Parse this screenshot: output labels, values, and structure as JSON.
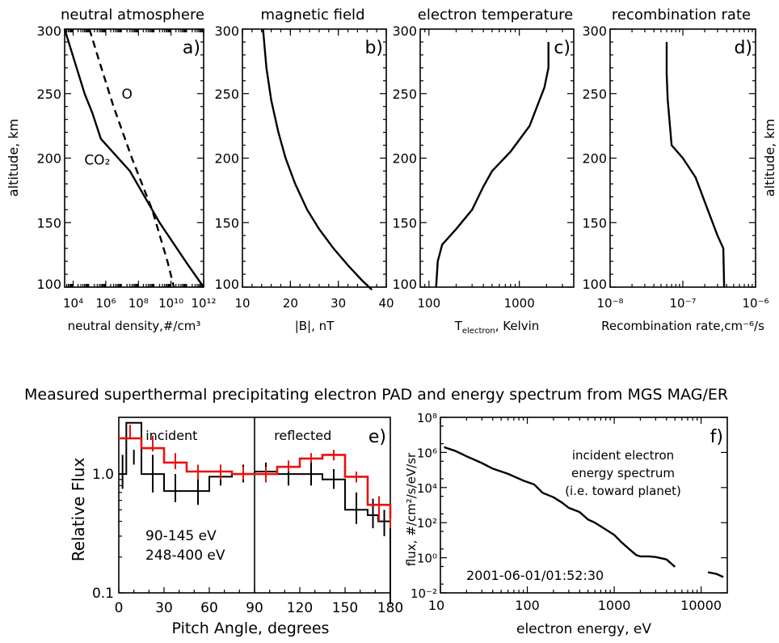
{
  "chart_data": [
    {
      "id": "a",
      "type": "line",
      "title": "neutral atmosphere",
      "panel_label": "a)",
      "xlabel": "neutral density,#/cm³",
      "ylabel": "altitude, km",
      "xscale": "log",
      "xlim": [
        3000,
        1000000000000.0
      ],
      "ylim": [
        100,
        300
      ],
      "xticks": [
        {
          "v": 10000.0,
          "label": "10⁴"
        },
        {
          "v": 1000000.0,
          "label": "10⁶"
        },
        {
          "v": 100000000.0,
          "label": "10⁸"
        },
        {
          "v": 10000000000.0,
          "label": "10¹⁰"
        },
        {
          "v": 1000000000000.0,
          "label": "10¹²"
        }
      ],
      "yticks": [
        100,
        150,
        200,
        250,
        300
      ],
      "series": [
        {
          "name": "CO₂",
          "style": "solid",
          "x": [
            3000,
            50000,
            150000,
            500000,
            30000000,
            2000000000.0,
            100000000000.0,
            1000000000000.0
          ],
          "y": [
            300,
            250,
            235,
            215,
            190,
            150,
            118,
            100
          ]
        },
        {
          "name": "O",
          "style": "dashed",
          "x": [
            100000,
            400000,
            3000000,
            40000000,
            700000000,
            6000000000,
            15000000000.0
          ],
          "y": [
            300,
            275,
            240,
            200,
            160,
            120,
            100
          ]
        }
      ],
      "annotations": [
        {
          "text": "O",
          "x": 20000000.0,
          "y": 246
        },
        {
          "text": "CO₂",
          "x": 300000.0,
          "y": 195
        }
      ]
    },
    {
      "id": "b",
      "type": "line",
      "title": "magnetic field",
      "panel_label": "b)",
      "xlabel": "|B|, nT",
      "xscale": "linear",
      "xlim": [
        10,
        40
      ],
      "ylim": [
        100,
        300
      ],
      "xticks": [
        {
          "v": 10,
          "label": "10"
        },
        {
          "v": 20,
          "label": "20"
        },
        {
          "v": 30,
          "label": "30"
        },
        {
          "v": 40,
          "label": "40"
        }
      ],
      "yticks": [
        100,
        150,
        200,
        250,
        300
      ],
      "series": [
        {
          "name": "",
          "style": "solid",
          "x": [
            14.3,
            15,
            16,
            17.5,
            19,
            21,
            23.5,
            26,
            29,
            32,
            35,
            37
          ],
          "y": [
            300,
            270,
            245,
            220,
            200,
            180,
            160,
            145,
            130,
            117,
            105,
            98
          ]
        }
      ]
    },
    {
      "id": "c",
      "type": "line",
      "title": "electron temperature",
      "panel_label": "c)",
      "xlabel": "T",
      "xlabel_sub": "electron",
      "xlabel_rest": ", Kelvin",
      "xscale": "log",
      "xlim": [
        80,
        4000
      ],
      "ylim": [
        100,
        300
      ],
      "xticks": [
        {
          "v": 100,
          "label": "100"
        },
        {
          "v": 1000,
          "label": "1000"
        }
      ],
      "yticks": [
        100,
        150,
        200,
        250,
        300
      ],
      "series": [
        {
          "name": "",
          "style": "solid",
          "x": [
            120,
            125,
            140,
            200,
            300,
            400,
            500,
            800,
            1300,
            1900,
            2100,
            2100
          ],
          "y": [
            100,
            120,
            133,
            145,
            160,
            178,
            190,
            205,
            225,
            255,
            270,
            290
          ]
        }
      ]
    },
    {
      "id": "d",
      "type": "line",
      "title": "recombination rate",
      "panel_label": "d)",
      "xlabel": "Recombination rate,cm⁻⁶/s",
      "ylabel": "altitude, km",
      "xscale": "log",
      "xlim": [
        1e-08,
        1e-06
      ],
      "ylim": [
        100,
        300
      ],
      "xticks": [
        {
          "v": 1e-08,
          "label": "10⁻⁸"
        },
        {
          "v": 1e-07,
          "label": "10⁻⁷"
        },
        {
          "v": 1e-06,
          "label": "10⁻⁶"
        }
      ],
      "yticks": [
        100,
        150,
        200,
        250,
        300
      ],
      "series": [
        {
          "name": "",
          "style": "solid",
          "x": [
            6e-08,
            6e-08,
            6.2e-08,
            7e-08,
            1e-07,
            1.5e-07,
            2.2e-07,
            3e-07,
            3.6e-07,
            3.7e-07
          ],
          "y": [
            290,
            265,
            245,
            210,
            200,
            185,
            160,
            140,
            130,
            100
          ]
        }
      ]
    },
    {
      "id": "e",
      "type": "line",
      "heading": "Measured superthermal precipitating electron PAD and energy spectrum from MGS MAG/ER",
      "panel_label": "e)",
      "xlabel": "Pitch Angle, degrees",
      "ylabel": "Relative Flux",
      "xscale": "linear",
      "yscale": "log",
      "xlim": [
        0,
        180
      ],
      "ylim": [
        0.1,
        3
      ],
      "xticks": [
        {
          "v": 0,
          "label": "0"
        },
        {
          "v": 30,
          "label": "30"
        },
        {
          "v": 60,
          "label": "60"
        },
        {
          "v": 90,
          "label": "90"
        },
        {
          "v": 120,
          "label": "120"
        },
        {
          "v": 150,
          "label": "150"
        },
        {
          "v": 180,
          "label": "180"
        }
      ],
      "yticks": [
        {
          "v": 0.1,
          "label": "0.1"
        },
        {
          "v": 1.0,
          "label": "1.0"
        }
      ],
      "divider_x": 90,
      "region_labels": [
        {
          "text": "incident",
          "x": 35
        },
        {
          "text": "reflected",
          "x": 122
        }
      ],
      "series": [
        {
          "name": "90-145 eV",
          "color": "#e8120c",
          "edges": [
            0,
            15,
            30,
            45,
            60,
            75,
            90,
            105,
            120,
            135,
            150,
            165,
            180
          ],
          "values": [
            2.0,
            1.65,
            1.25,
            1.05,
            1.05,
            1.0,
            1.0,
            1.15,
            1.35,
            1.45,
            0.95,
            0.55,
            0.42
          ],
          "errors": [
            [
              2,
              2.6
            ],
            [
              1.55,
              2.1
            ],
            [
              1.1,
              1.5
            ],
            [
              0.9,
              1.2
            ],
            [
              0.9,
              1.2
            ],
            [
              0.9,
              1.15
            ],
            [
              0.85,
              1.15
            ],
            [
              1.05,
              1.3
            ],
            [
              1.25,
              1.5
            ],
            [
              1.3,
              1.6
            ],
            [
              0.85,
              1.05
            ],
            [
              0.4,
              0.65
            ],
            [
              0.35,
              0.5
            ]
          ]
        },
        {
          "name": "248-400 eV",
          "color": "#000000",
          "edges": [
            0,
            5,
            15,
            30,
            45,
            60,
            75,
            90,
            105,
            120,
            135,
            150,
            165,
            172,
            180
          ],
          "values": [
            1.0,
            2.7,
            1.0,
            0.72,
            0.72,
            0.95,
            1.0,
            1.05,
            1.0,
            1.0,
            0.9,
            0.5,
            0.45,
            0.4,
            0.1
          ],
          "errors": [
            [
              0.75,
              1.45
            ],
            [
              1.2,
              1.6
            ],
            [
              0.7,
              1.45
            ],
            [
              0.58,
              1.0
            ],
            [
              0.55,
              1.0
            ],
            [
              0.8,
              1.2
            ],
            [
              0.85,
              1.2
            ],
            [
              0.85,
              1.25
            ],
            [
              0.8,
              1.25
            ],
            [
              0.8,
              1.3
            ],
            [
              0.75,
              1.1
            ],
            [
              0.38,
              0.7
            ],
            [
              0.35,
              0.62
            ],
            [
              0.3,
              0.5
            ],
            [
              0.08,
              0.12
            ]
          ]
        }
      ]
    },
    {
      "id": "f",
      "type": "line",
      "panel_label": "f)",
      "xlabel": "electron energy, eV",
      "ylabel": "flux, #/cm²/s/eV/sr",
      "xscale": "log",
      "yscale": "log",
      "xlim": [
        10,
        20000
      ],
      "ylim": [
        0.01,
        100000000.0
      ],
      "xticks": [
        {
          "v": 10,
          "label": "10"
        },
        {
          "v": 100,
          "label": "100"
        },
        {
          "v": 1000,
          "label": "1000"
        },
        {
          "v": 10000,
          "label": "10000"
        }
      ],
      "yticks": [
        {
          "v": 0.01,
          "label": "10⁻²"
        },
        {
          "v": 1,
          "label": "10⁰"
        },
        {
          "v": 100,
          "label": "10²"
        },
        {
          "v": 10000,
          "label": "10⁴"
        },
        {
          "v": 1000000,
          "label": "10⁶"
        },
        {
          "v": 100000000,
          "label": "10⁸"
        }
      ],
      "annotation": [
        "incident electron",
        "energy spectrum",
        "(i.e. toward planet)"
      ],
      "timestamp": "2001-06-01/01:52:30",
      "series": [
        {
          "name": "",
          "x": [
            11,
            15,
            20,
            30,
            40,
            60,
            90,
            120,
            150,
            200,
            250,
            300,
            400,
            500,
            600,
            800,
            1000,
            1200,
            1500,
            1800,
            2000,
            2500,
            3000,
            4000,
            5000
          ],
          "y": [
            2000000,
            1200000,
            600000,
            250000,
            120000,
            60000,
            25000,
            15000,
            5000,
            2800,
            1400,
            700,
            400,
            150,
            100,
            40,
            20,
            8,
            3,
            1.4,
            1.2,
            1.2,
            1.1,
            0.8,
            0.3
          ]
        },
        {
          "name": "",
          "x": [
            12000,
            15000,
            18000
          ],
          "y": [
            0.15,
            0.12,
            0.08
          ]
        }
      ]
    }
  ]
}
